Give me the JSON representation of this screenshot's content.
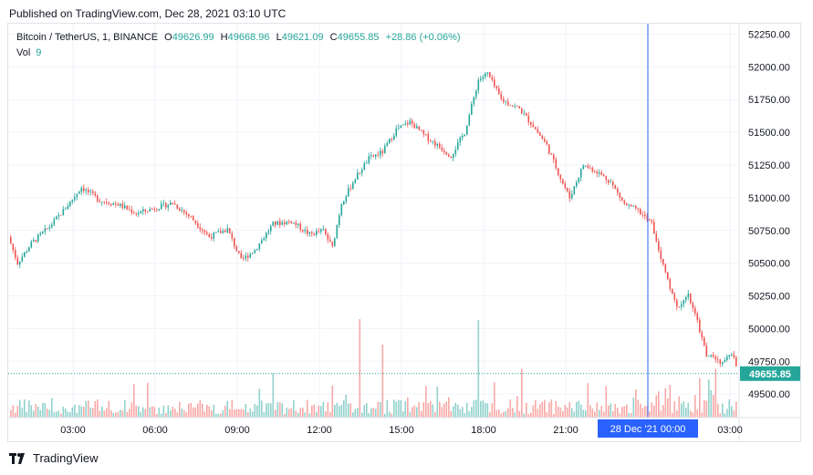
{
  "header": {
    "published": "Published on TradingView.com, Dec 28, 2021 03:10 UTC"
  },
  "legend": {
    "symbol": "Bitcoin / TetherUS, 1, BINANCE",
    "o_label": "O",
    "o_value": "49626.99",
    "h_label": "H",
    "h_value": "49668.96",
    "l_label": "L",
    "l_value": "49621.09",
    "c_label": "C",
    "c_value": "49655.85",
    "change": "+28.86 (+0.06%)",
    "vol_label": "Vol",
    "vol_value": "9"
  },
  "footer": {
    "brand": "TradingView",
    "logo_icon": "tradingview-logo-icon"
  },
  "colors": {
    "up": "#26a69a",
    "down": "#ef5350",
    "crosshair": "#2962ff",
    "price_badge": "#26a69a",
    "grid": "#f0f3fa"
  },
  "chart_data": {
    "type": "candlestick",
    "title": "Bitcoin / TetherUS, 1, BINANCE",
    "y_ticks": [
      49500,
      49750,
      50000,
      50250,
      50500,
      50750,
      51000,
      51250,
      51500,
      51750,
      52000,
      52250
    ],
    "y_tick_labels": [
      "49500.00",
      "49750.00",
      "50000.00",
      "50250.00",
      "50500.00",
      "50750.00",
      "51000.00",
      "51250.00",
      "51500.00",
      "51750.00",
      "52000.00",
      "52250.00"
    ],
    "ylim": [
      49320,
      52330
    ],
    "x_ticks": [
      "03:00",
      "06:00",
      "09:00",
      "12:00",
      "15:00",
      "18:00",
      "21:00",
      "00:00",
      "03:00"
    ],
    "crosshair_label": "28 Dec '21   00:00",
    "last_price": 49655.85,
    "last_price_label": "49655.85",
    "grid": true,
    "price_path_anchors": [
      [
        0,
        50700
      ],
      [
        10,
        50500
      ],
      [
        25,
        50650
      ],
      [
        45,
        50780
      ],
      [
        60,
        50900
      ],
      [
        80,
        51080
      ],
      [
        100,
        50980
      ],
      [
        120,
        50950
      ],
      [
        140,
        50880
      ],
      [
        160,
        50920
      ],
      [
        180,
        50960
      ],
      [
        200,
        50850
      ],
      [
        220,
        50700
      ],
      [
        240,
        50760
      ],
      [
        255,
        50520
      ],
      [
        270,
        50600
      ],
      [
        290,
        50800
      ],
      [
        310,
        50820
      ],
      [
        330,
        50720
      ],
      [
        345,
        50750
      ],
      [
        355,
        50620
      ],
      [
        365,
        50960
      ],
      [
        380,
        51150
      ],
      [
        395,
        51300
      ],
      [
        410,
        51350
      ],
      [
        425,
        51520
      ],
      [
        440,
        51580
      ],
      [
        455,
        51480
      ],
      [
        470,
        51400
      ],
      [
        485,
        51320
      ],
      [
        500,
        51500
      ],
      [
        515,
        51900
      ],
      [
        525,
        51950
      ],
      [
        540,
        51750
      ],
      [
        560,
        51680
      ],
      [
        575,
        51550
      ],
      [
        590,
        51400
      ],
      [
        605,
        51150
      ],
      [
        615,
        51000
      ],
      [
        630,
        51250
      ],
      [
        645,
        51200
      ],
      [
        660,
        51120
      ],
      [
        675,
        50950
      ],
      [
        690,
        50900
      ],
      [
        705,
        50800
      ],
      [
        715,
        50550
      ],
      [
        725,
        50300
      ],
      [
        735,
        50150
      ],
      [
        745,
        50250
      ],
      [
        755,
        50050
      ],
      [
        765,
        49800
      ],
      [
        780,
        49750
      ],
      [
        792,
        49800
      ],
      [
        800,
        49700
      ],
      [
        806,
        49656
      ]
    ]
  }
}
